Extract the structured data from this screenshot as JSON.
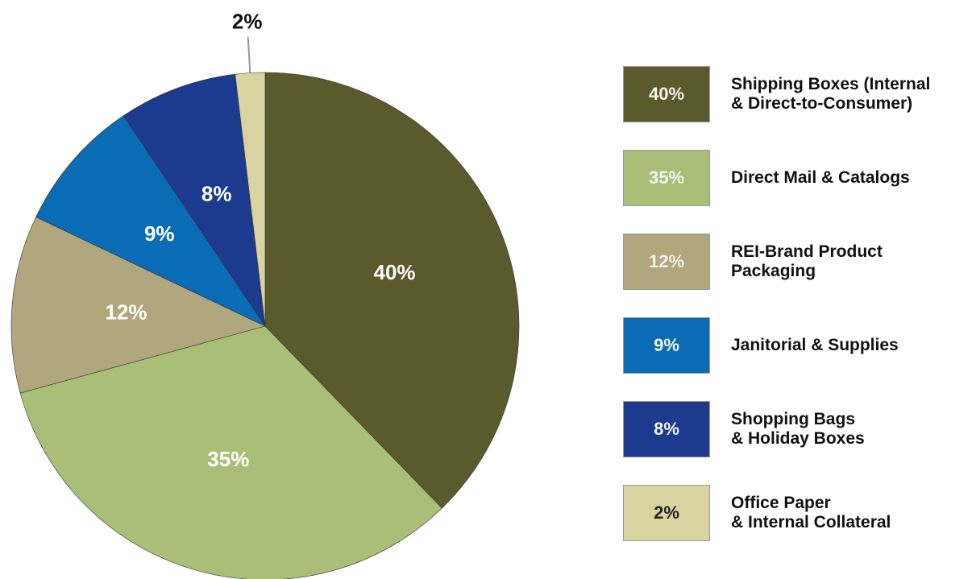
{
  "chart_data": {
    "type": "pie",
    "categories": [
      "Shipping Boxes (Internal\n& Direct-to-Consumer)",
      "Direct Mail & Catalogs",
      "REI-Brand Product\nPackaging",
      "Janitorial & Supplies",
      "Shopping Bags\n& Holiday Boxes",
      "Office Paper\n& Internal Collateral"
    ],
    "values": [
      40,
      35,
      12,
      9,
      8,
      2
    ],
    "value_labels": [
      "40%",
      "35%",
      "12%",
      "9%",
      "8%",
      "2%"
    ],
    "colors": [
      "#5b5a2c",
      "#a9bf78",
      "#b0a77e",
      "#0a6cb4",
      "#1c3a8e",
      "#d8d3a0"
    ],
    "legend": "right"
  }
}
